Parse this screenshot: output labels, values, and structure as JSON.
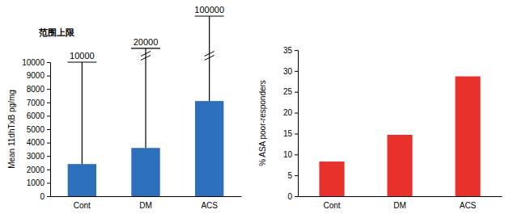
{
  "chart_data": [
    {
      "type": "bar",
      "title": "范围上限",
      "categories": [
        "Cont",
        "DM",
        "ACS"
      ],
      "values": [
        2400,
        3600,
        7100
      ],
      "range_max": [
        10000,
        20000,
        100000
      ],
      "color": "#2c6fbb",
      "y_label": "Mean 11dhTxB pg/mg",
      "ylim": [
        0,
        10000
      ],
      "yticks": [
        0,
        1000,
        2000,
        3000,
        4000,
        5000,
        6000,
        7000,
        8000,
        9000,
        10000
      ]
    },
    {
      "type": "bar",
      "categories": [
        "Cont",
        "DM",
        "ACS"
      ],
      "values": [
        8.3,
        14.7,
        28.7
      ],
      "color": "#e8312a",
      "y_label": "% ASA poor-responders",
      "ylim": [
        0,
        35
      ],
      "yticks": [
        0,
        5,
        10,
        15,
        20,
        25,
        30,
        35
      ]
    }
  ]
}
